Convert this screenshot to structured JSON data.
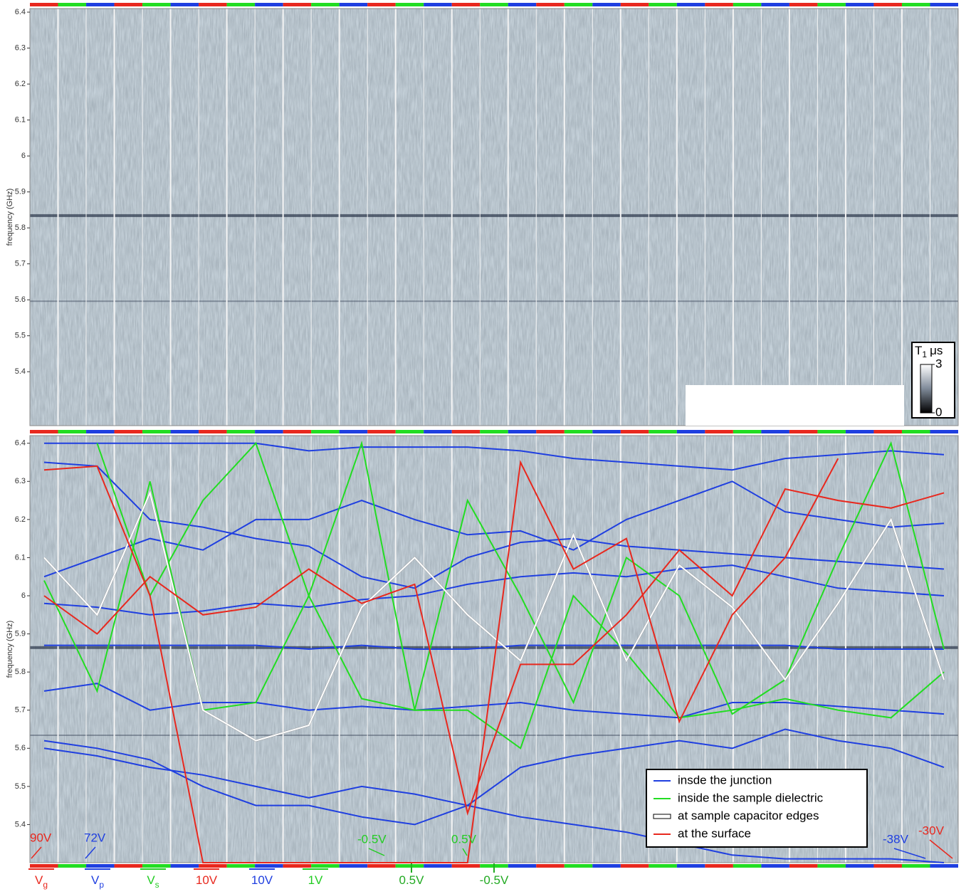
{
  "chart_data": [
    {
      "type": "heatmap",
      "ylabel": "frequency (GHz)",
      "ylim": [
        5.25,
        6.41
      ],
      "yticks": [
        5.4,
        5.5,
        5.6,
        5.7,
        5.8,
        5.9,
        6,
        6.1,
        6.2,
        6.3,
        6.4
      ],
      "colorbar": {
        "label": "T",
        "sub": "1",
        "unit": "μs",
        "clim": [
          0,
          3
        ],
        "ticks": [
          0,
          3
        ],
        "colors": [
          "#000000",
          "#ffffff"
        ]
      }
    },
    {
      "type": "line",
      "ylabel": "frequency (GHz)",
      "ylim": [
        5.3,
        6.42
      ],
      "yticks": [
        5.4,
        5.5,
        5.6,
        5.7,
        5.8,
        5.9,
        6,
        6.1,
        6.2,
        6.3,
        6.4
      ],
      "categories": [
        null,
        null,
        null,
        null,
        null,
        null,
        null,
        null,
        null,
        null,
        null,
        null,
        null,
        null,
        null,
        null,
        null,
        null
      ],
      "legend": "lower right",
      "series": [
        {
          "name": "insde the junction",
          "color": "#1f3fe0",
          "lines": [
            [
              6.4,
              6.4,
              6.4,
              6.4,
              6.4,
              6.38,
              6.39,
              6.39,
              6.39,
              6.38,
              6.36,
              6.35,
              6.34,
              6.33,
              6.36,
              6.37,
              6.38,
              6.37
            ],
            [
              6.35,
              6.34,
              6.2,
              6.18,
              6.15,
              6.13,
              6.05,
              6.02,
              6.1,
              6.14,
              6.15,
              6.13,
              6.12,
              6.11,
              6.1,
              6.09,
              6.08,
              6.07
            ],
            [
              5.98,
              5.97,
              5.95,
              5.96,
              5.98,
              5.97,
              5.99,
              6.0,
              6.03,
              6.05,
              6.06,
              6.05,
              6.07,
              6.08,
              6.05,
              6.02,
              6.01,
              6.0
            ],
            [
              5.87,
              5.87,
              5.87,
              5.87,
              5.87,
              5.86,
              5.87,
              5.86,
              5.86,
              5.87,
              5.87,
              5.87,
              5.87,
              5.87,
              5.87,
              5.86,
              5.86,
              5.86
            ],
            [
              5.75,
              5.77,
              5.7,
              5.72,
              5.72,
              5.7,
              5.71,
              5.7,
              5.71,
              5.72,
              5.7,
              5.69,
              5.68,
              5.72,
              5.72,
              5.71,
              5.7,
              5.69
            ],
            [
              5.6,
              5.58,
              5.55,
              5.53,
              5.5,
              5.47,
              5.5,
              5.48,
              5.45,
              5.42,
              5.4,
              5.38,
              5.35,
              5.32,
              5.31,
              5.31,
              5.31,
              5.3
            ],
            [
              5.62,
              5.6,
              5.57,
              5.5,
              5.45,
              5.45,
              5.42,
              5.4,
              5.45,
              5.55,
              5.58,
              5.6,
              5.62,
              5.6,
              5.65,
              5.62,
              5.6,
              5.55
            ],
            [
              6.05,
              6.1,
              6.15,
              6.12,
              6.2,
              6.2,
              6.25,
              6.2,
              6.16,
              6.17,
              6.12,
              6.2,
              6.25,
              6.3,
              6.22,
              6.2,
              6.18,
              6.19
            ]
          ]
        },
        {
          "name": "inside the sample dielectric",
          "color": "#22dd22",
          "lines": [
            [
              6.04,
              5.75,
              6.3,
              5.7,
              5.72,
              6.0,
              5.73,
              5.7,
              5.7,
              5.6,
              6.0,
              5.85,
              5.68,
              5.7,
              5.73,
              5.7,
              5.68,
              5.8
            ],
            [
              null,
              6.4,
              6.0,
              6.25,
              6.4,
              6.0,
              6.4,
              5.7,
              6.25,
              6.0,
              5.72,
              6.1,
              6.0,
              5.69,
              5.78,
              6.1,
              6.4,
              5.86
            ]
          ]
        },
        {
          "name": "at sample capacitor edges",
          "color": "#ffffff",
          "lines": [
            [
              6.1,
              5.95,
              6.27,
              5.7,
              5.62,
              5.66,
              5.97,
              6.1,
              5.95,
              5.83,
              6.16,
              5.83,
              6.08,
              5.97,
              5.78,
              5.98,
              6.2,
              5.78
            ]
          ]
        },
        {
          "name": "at the surface",
          "color": "#e8281e",
          "lines": [
            [
              6.0,
              5.9,
              6.05,
              5.95,
              5.97,
              6.07,
              5.98,
              6.03,
              5.43,
              5.82,
              5.82,
              5.95,
              6.12,
              6.0,
              6.28,
              6.25,
              6.23,
              6.27
            ],
            [
              6.33,
              6.34,
              6.0,
              5.3,
              5.3,
              5.3,
              5.3,
              5.3,
              5.3,
              6.35,
              6.07,
              6.15,
              5.67,
              5.95,
              6.1,
              6.36,
              null,
              null
            ]
          ]
        }
      ],
      "annotations": [
        {
          "text": "90V",
          "color": "#e8281e"
        },
        {
          "text": "72V",
          "color": "#1f3fe0"
        },
        {
          "text": "-0.5V",
          "color": "#22cc22"
        },
        {
          "text": "0.5V",
          "color": "#22cc22"
        },
        {
          "text": "-38V",
          "color": "#1f3fe0"
        },
        {
          "text": "-30V",
          "color": "#e8281e"
        }
      ],
      "sweeps": [
        {
          "text": "V",
          "sub": "g",
          "color": "#e8281e"
        },
        {
          "text": "V",
          "sub": "p",
          "color": "#1f3fe0"
        },
        {
          "text": "V",
          "sub": "s",
          "color": "#22cc22"
        },
        {
          "text": "10V",
          "color": "#e8281e"
        },
        {
          "text": "10V",
          "color": "#1f3fe0"
        },
        {
          "text": "1V",
          "color": "#22cc22"
        },
        {
          "text": "0.5V",
          "color": "#22aa22"
        },
        {
          "text": "-0.5V",
          "color": "#22aa22"
        }
      ]
    }
  ]
}
